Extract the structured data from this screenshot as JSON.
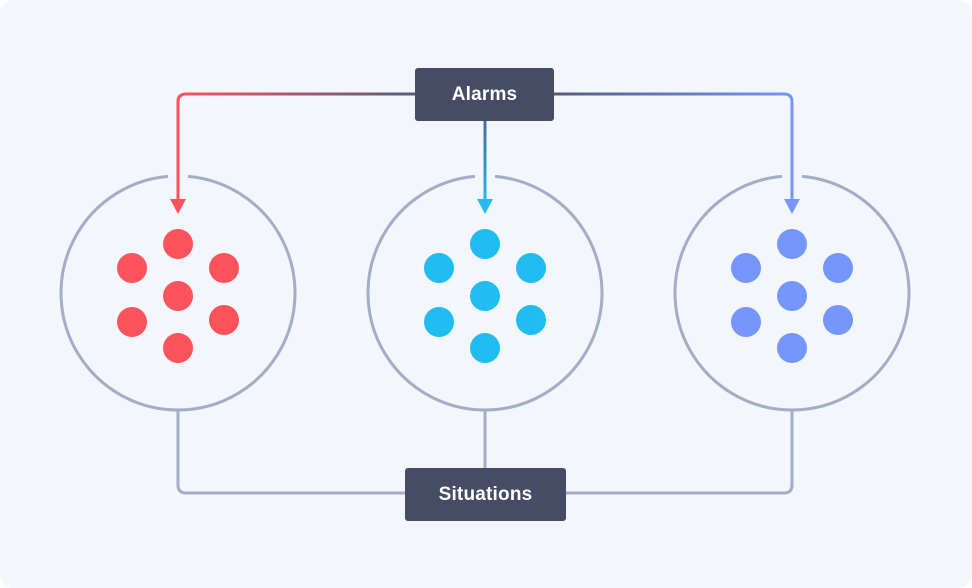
{
  "nodes": {
    "alarms": "Alarms",
    "situations": "Situations"
  },
  "clusters": [
    {
      "id": "cluster-red",
      "color": "#fc535d",
      "dots": 7
    },
    {
      "id": "cluster-cyan",
      "color": "#22bdf0",
      "dots": 7
    },
    {
      "id": "cluster-blue",
      "color": "#7596fb",
      "dots": 7
    }
  ],
  "colors": {
    "background": "#f3f6fb",
    "box": "#464c65",
    "ring": "#a4adc8",
    "connector": "#5a6383"
  }
}
